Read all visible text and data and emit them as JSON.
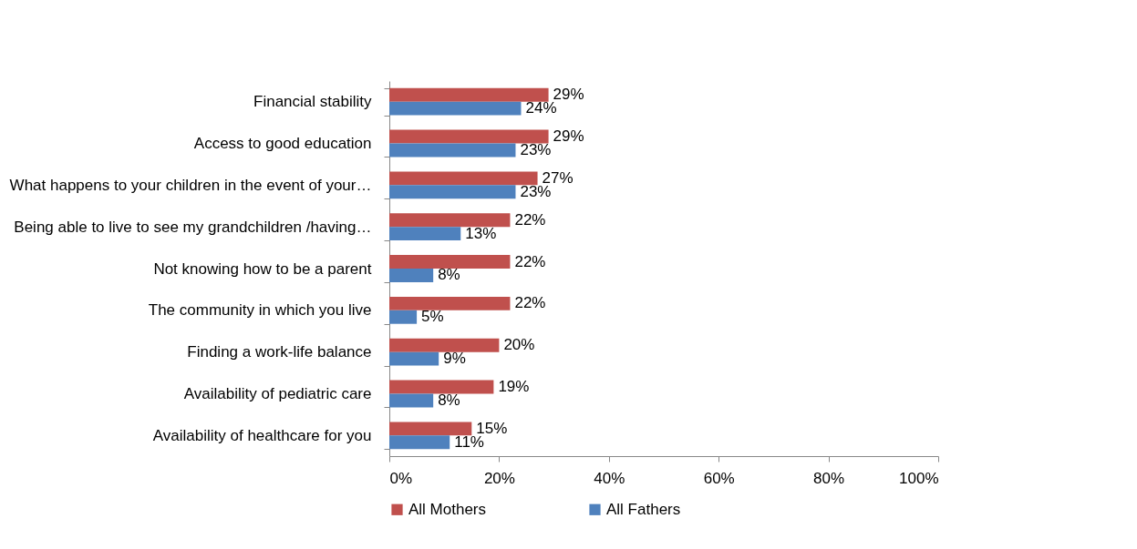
{
  "chart_data": {
    "type": "bar",
    "orientation": "horizontal",
    "categories": [
      "Financial stability",
      "Access to good education",
      "What happens to your children in the event of your…",
      "Being able to live to see my grandchildren /having…",
      "Not knowing how to be a parent",
      "The community in which you live",
      "Finding a work-life balance",
      "Availability of pediatric care",
      "Availability of healthcare for you"
    ],
    "series": [
      {
        "name": "All Mothers",
        "color": "#c0504d",
        "values": [
          29,
          29,
          27,
          22,
          22,
          22,
          20,
          19,
          15
        ],
        "value_labels": [
          "29%",
          "29%",
          "27%",
          "22%",
          "22%",
          "22%",
          "20%",
          "19%",
          "15%"
        ]
      },
      {
        "name": "All Fathers",
        "color": "#4f81bd",
        "values": [
          24,
          23,
          23,
          13,
          8,
          5,
          9,
          8,
          11
        ],
        "value_labels": [
          "24%",
          "23%",
          "23%",
          "13%",
          "8%",
          "5%",
          "9%",
          "8%",
          "11%"
        ]
      }
    ],
    "xlim": [
      0,
      100
    ],
    "xticks": [
      {
        "value": 0,
        "label": "0%"
      },
      {
        "value": 20,
        "label": "20%"
      },
      {
        "value": 40,
        "label": "40%"
      },
      {
        "value": 60,
        "label": "60%"
      },
      {
        "value": 80,
        "label": "80%"
      },
      {
        "value": 100,
        "label": "100%"
      }
    ],
    "legend": "bottom",
    "grid": false
  }
}
